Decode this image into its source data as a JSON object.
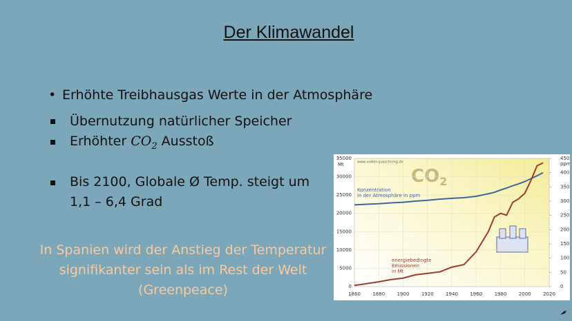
{
  "slide": {
    "title": "Der Klimawandel",
    "bullets": [
      {
        "text": "Erhöhte Treibhausgas Werte in der Atmosphäre"
      },
      {
        "text": "Übernutzung natürlicher Speicher"
      },
      {
        "before": "Erhöhter",
        "formula": "CO",
        "subscript": "2",
        "after": "Ausstoß"
      },
      {
        "lines": [
          "Bis 2100, Globale Ø Temp. steigt um",
          "1,1 – 6,4 Grad"
        ]
      }
    ],
    "note": [
      "In Spanien wird der Anstieg der Temperatur",
      "signifikanter sein als im Rest der Welt",
      "(Greenpeace)"
    ]
  },
  "chart": {
    "type": "line",
    "title": "CO",
    "title_subscript": "2",
    "source": "www.volker-quaschning.de",
    "y_unit": "Mt",
    "y2_unit": "ppm",
    "x": [
      1860,
      1870,
      1880,
      1890,
      1900,
      1910,
      1920,
      1930,
      1940,
      1950,
      1960,
      1970,
      1975,
      1980,
      1985,
      1990,
      1995,
      2000,
      2005,
      2010,
      2015
    ],
    "xlim": [
      1860,
      2020
    ],
    "xticks": [
      1860,
      1880,
      1900,
      1920,
      1940,
      1960,
      1980,
      2000,
      2020
    ],
    "ylim": [
      0,
      35000
    ],
    "yticks": [
      0,
      5000,
      10000,
      15000,
      20000,
      25000,
      30000,
      35000
    ],
    "y2lim": [
      0,
      450
    ],
    "y2ticks": [
      0,
      50,
      100,
      150,
      200,
      250,
      300,
      350,
      400,
      450
    ],
    "grid": true,
    "series": [
      {
        "label": [
          "Konzentration",
          "in der Atmosphäre in ppm"
        ],
        "color": "#3d669e",
        "axis": "y2",
        "values": [
          287,
          289,
          291,
          294,
          296,
          300,
          303,
          307,
          310,
          312,
          317,
          326,
          331,
          339,
          346,
          354,
          361,
          369,
          379,
          389,
          400
        ]
      },
      {
        "label": [
          "energiebedingte",
          "Emissionen",
          "in Mt"
        ],
        "color": "#9c3b2b",
        "values": [
          300,
          800,
          1300,
          1900,
          2300,
          3200,
          3600,
          4000,
          5300,
          6000,
          9500,
          15000,
          19000,
          20000,
          19500,
          23000,
          24000,
          25500,
          29000,
          33000,
          33800
        ]
      }
    ]
  }
}
